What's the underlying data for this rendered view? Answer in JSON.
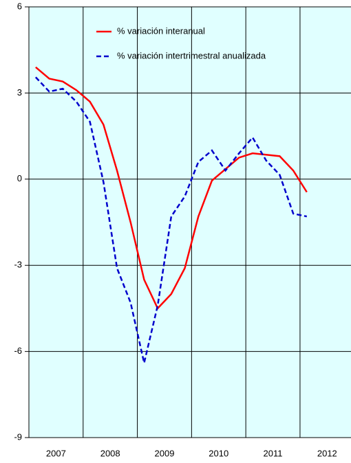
{
  "chart_data": {
    "type": "line",
    "x": [
      2007.125,
      2007.375,
      2007.625,
      2007.875,
      2008.125,
      2008.375,
      2008.625,
      2008.875,
      2009.125,
      2009.375,
      2009.625,
      2009.875,
      2010.125,
      2010.375,
      2010.625,
      2010.875,
      2011.125,
      2011.375,
      2011.625,
      2011.875,
      2012.125
    ],
    "series": [
      {
        "name": "% variación interanual",
        "color": "#ff0000",
        "dash": false,
        "values": [
          3.9,
          3.5,
          3.4,
          3.1,
          2.7,
          1.9,
          0.3,
          -1.5,
          -3.5,
          -4.5,
          -4.0,
          -3.1,
          -1.3,
          -0.05,
          0.35,
          0.75,
          0.9,
          0.85,
          0.8,
          0.3,
          -0.45
        ]
      },
      {
        "name": "% variación intertrimestral anualizada",
        "color": "#0000cc",
        "dash": true,
        "values": [
          3.55,
          3.05,
          3.15,
          2.7,
          2.0,
          -0.1,
          -3.1,
          -4.3,
          -6.4,
          -4.4,
          -1.3,
          -0.6,
          0.6,
          1.0,
          0.3,
          0.9,
          1.45,
          0.65,
          0.15,
          -1.2,
          -1.3
        ]
      }
    ],
    "xlim": [
      2007,
      2012.94
    ],
    "xticks": [
      2007,
      2008,
      2009,
      2010,
      2011,
      2012
    ],
    "ylim": [
      -9,
      6
    ],
    "yticks": [
      -9,
      -6,
      -3,
      0,
      3,
      6
    ],
    "grid": true,
    "legend": "top",
    "background": "#e0ffff"
  }
}
